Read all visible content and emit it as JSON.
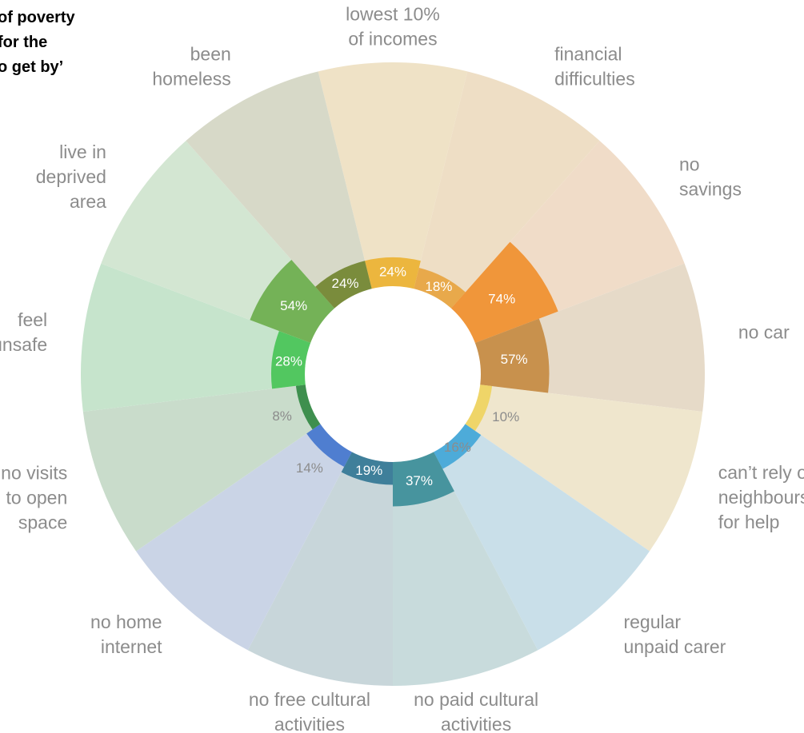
{
  "chart_data": {
    "type": "radial bar",
    "title_lines": [
      "of poverty",
      "for the",
      "o get by’"
    ],
    "categories": [
      "lowest 10%\nof incomes",
      "financial\ndifficulties",
      "no\nsavings",
      "no car",
      "can’t rely on\nneighbours\nfor help",
      "regular\nunpaid carer",
      "no paid cultural\nactivities",
      "no free cultural\nactivities",
      "no home\ninternet",
      "no visits\nto open\nspace",
      "feel\nunsafe",
      "live in\ndeprived\narea",
      "been\nhomeless"
    ],
    "values": [
      24,
      18,
      74,
      57,
      10,
      16,
      37,
      19,
      14,
      8,
      28,
      54,
      24
    ],
    "value_labels": [
      "24%",
      "18%",
      "74%",
      "57%",
      "10%",
      "16%",
      "37%",
      "19%",
      "14%",
      "8%",
      "28%",
      "54%",
      "24%"
    ],
    "range": [
      0,
      100
    ],
    "colors": [
      "#ecb63e",
      "#e8a94b",
      "#f0963a",
      "#c8914d",
      "#efd568",
      "#4dabd9",
      "#47949e",
      "#3f7f9a",
      "#4f7ed0",
      "#3e8f4e",
      "#52c760",
      "#74b257",
      "#7a8c3c"
    ],
    "outer_colors": [
      "#efe2c6",
      "#eedec5",
      "#f0dcc8",
      "#e6dac8",
      "#efe6cd",
      "#c9dfe9",
      "#c8dbdc",
      "#c8d6da",
      "#cad4e6",
      "#c9dccb",
      "#c6e4cc",
      "#d3e6d2",
      "#d7d9c8"
    ],
    "value_label_colors": [
      "#ffffff",
      "#ffffff",
      "#ffffff",
      "#ffffff",
      "#8c8c8c",
      "#8c8c8c",
      "#ffffff",
      "#ffffff",
      "#8c8c8c",
      "#8c8c8c",
      "#ffffff",
      "#ffffff",
      "#ffffff"
    ]
  }
}
